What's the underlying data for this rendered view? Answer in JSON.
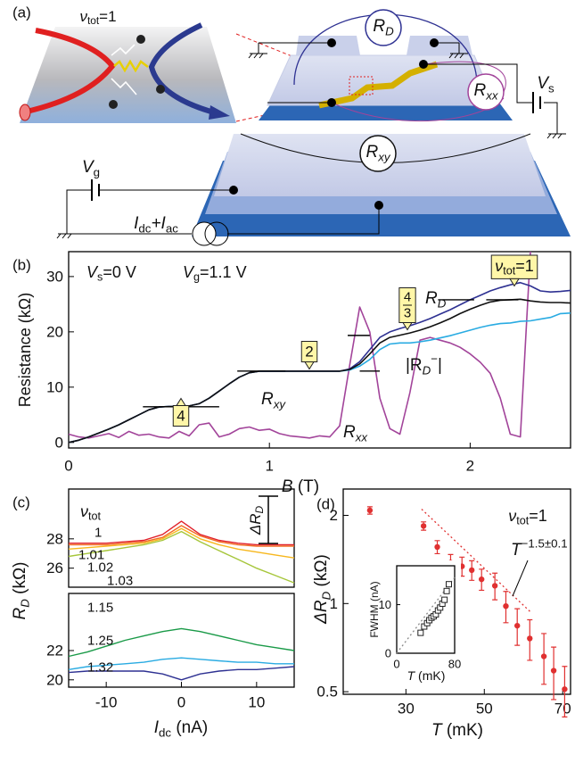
{
  "panel_labels": [
    "(a)",
    "(b)",
    "(c)",
    "(d)"
  ],
  "diagram": {
    "nu_label": [
      "ν",
      "tot",
      "=1"
    ],
    "rd": [
      "R",
      "D"
    ],
    "rxx": [
      "R",
      "xx"
    ],
    "vs": [
      "V",
      "s"
    ],
    "rxy": [
      "R",
      "xy"
    ],
    "vg": [
      "V",
      "g"
    ],
    "source": [
      "I",
      "dc",
      "+I",
      "ac"
    ]
  },
  "chart_data": [
    {
      "type": "line",
      "x": [
        0,
        0.05,
        0.1,
        0.15,
        0.2,
        0.25,
        0.3,
        0.35,
        0.4,
        0.45,
        0.5,
        0.55,
        0.6,
        0.65,
        0.7,
        0.75,
        0.8,
        0.85,
        0.9,
        0.95,
        1.0,
        1.05,
        1.1,
        1.15,
        1.2,
        1.25,
        1.3,
        1.35,
        1.4,
        1.45,
        1.5,
        1.55,
        1.6,
        1.65,
        1.7,
        1.75,
        1.8,
        1.85,
        1.9,
        1.95,
        2.0,
        2.05,
        2.1,
        2.15,
        2.2,
        2.25,
        2.3,
        2.35,
        2.4,
        2.45,
        2.5
      ],
      "series": [
        {
          "name": [
            "R",
            "xx"
          ],
          "color": "#a2449a",
          "values": [
            1.5,
            1.0,
            0.8,
            1.2,
            1.6,
            0.9,
            2.0,
            1.3,
            1.5,
            1.0,
            0.8,
            2.0,
            1.2,
            3.2,
            3.5,
            1.0,
            1.5,
            2.5,
            2.8,
            2.2,
            2.4,
            1.6,
            1.2,
            1.0,
            0.8,
            1.2,
            1.0,
            3.0,
            14.0,
            24.5,
            20.0,
            8.0,
            2.5,
            1.5,
            9.0,
            18.5,
            19.0,
            18.5,
            18.0,
            17.2,
            16.0,
            14.5,
            12.5,
            8.0,
            1.5,
            1.0,
            34.5,
            null,
            null,
            null,
            null
          ]
        },
        {
          "name": [
            "|R",
            "D",
            "−",
            "|"
          ],
          "color": "#29abe2",
          "values": [
            0,
            0.4,
            1.0,
            1.7,
            2.4,
            3.2,
            4.1,
            5.0,
            5.9,
            6.4,
            6.5,
            6.5,
            6.6,
            7.0,
            8.0,
            9.3,
            10.6,
            11.8,
            12.6,
            12.9,
            12.9,
            12.9,
            12.9,
            12.9,
            12.9,
            12.9,
            12.9,
            12.9,
            13.1,
            13.8,
            15.0,
            16.8,
            17.8,
            18.0,
            18.0,
            18.2,
            18.5,
            18.9,
            19.3,
            19.8,
            20.3,
            20.8,
            21.2,
            21.5,
            21.6,
            21.9,
            22.0,
            22.3,
            22.6,
            23.3,
            23.4
          ]
        },
        {
          "name": [
            "R",
            "D"
          ],
          "color": "#2e3192",
          "values": [
            0,
            0.4,
            1.0,
            1.7,
            2.4,
            3.2,
            4.1,
            5.0,
            5.9,
            6.4,
            6.5,
            6.5,
            6.6,
            7.0,
            8.0,
            9.3,
            10.6,
            11.8,
            12.6,
            12.9,
            12.9,
            12.9,
            12.9,
            12.9,
            12.9,
            12.9,
            12.9,
            12.9,
            13.3,
            14.6,
            16.8,
            19.0,
            20.0,
            20.6,
            21.1,
            21.7,
            22.4,
            23.2,
            24.0,
            24.9,
            25.8,
            26.6,
            27.4,
            28.0,
            28.5,
            28.9,
            28.3,
            27.4,
            27.2,
            27.3,
            27.5
          ]
        },
        {
          "name": [
            "R",
            "xy"
          ],
          "color": "#111111",
          "values": [
            0,
            0.4,
            1.0,
            1.7,
            2.4,
            3.2,
            4.1,
            5.0,
            5.9,
            6.4,
            6.5,
            6.5,
            6.6,
            7.0,
            8.0,
            9.3,
            10.6,
            11.8,
            12.6,
            12.9,
            12.9,
            12.9,
            12.9,
            12.9,
            12.9,
            12.9,
            12.9,
            12.9,
            13.2,
            14.2,
            16.0,
            18.0,
            19.0,
            19.4,
            19.8,
            20.3,
            20.9,
            21.6,
            22.4,
            23.3,
            24.1,
            24.8,
            25.4,
            25.7,
            25.8,
            25.9,
            25.6,
            25.4,
            25.3,
            25.3,
            25.2
          ]
        }
      ],
      "xlim": [
        0,
        2.5
      ],
      "ylim": [
        -1,
        34.5
      ],
      "xticks": [
        0,
        1,
        2
      ],
      "yticks": [
        0,
        10,
        20,
        30
      ],
      "x_label": [
        "B",
        " (T)"
      ],
      "y_label": "Resistance (kΩ)",
      "annotations": [
        [
          "V",
          "s",
          "=0 V"
        ],
        [
          "V",
          "g",
          "=1.1 V"
        ]
      ],
      "plateau_labels": [
        "4",
        "2",
        [
          "4",
          "3"
        ],
        [
          "ν",
          "tot",
          "=1"
        ]
      ],
      "hlines": [
        {
          "x": [
            0.37,
            0.75
          ],
          "y": 6.45
        },
        {
          "x": [
            0.84,
            1.08
          ],
          "y": 12.9
        },
        {
          "x": [
            1.45,
            1.55
          ],
          "y": 12.9
        },
        {
          "x": [
            1.39,
            1.5
          ],
          "y": 19.35
        },
        {
          "x": [
            1.84,
            2.02
          ],
          "y": 25.8
        },
        {
          "x": [
            2.08,
            2.24
          ],
          "y": 25.8
        }
      ]
    },
    {
      "type": "line",
      "x": [
        -15,
        -12.5,
        -10,
        -7.5,
        -5,
        -2.5,
        0,
        2.5,
        5,
        7.5,
        10,
        12.5,
        15
      ],
      "series": [
        {
          "name": "1.03",
          "color": "#a6c63a",
          "values": [
            26.8,
            27.0,
            27.2,
            27.4,
            27.6,
            27.9,
            28.5,
            27.8,
            27.2,
            26.6,
            26.0,
            25.5,
            25.0
          ]
        },
        {
          "name": "1.02",
          "color": "#f7b71d",
          "values": [
            27.3,
            27.4,
            27.5,
            27.6,
            27.7,
            28.0,
            28.7,
            28.0,
            27.6,
            27.3,
            27.1,
            26.9,
            26.7
          ]
        },
        {
          "name": "1.01",
          "color": "#f26b22",
          "values": [
            27.6,
            27.6,
            27.6,
            27.7,
            27.8,
            28.1,
            28.9,
            28.2,
            27.8,
            27.6,
            27.5,
            27.5,
            27.5
          ]
        },
        {
          "name": "1",
          "color": "#e0202a",
          "values": [
            27.7,
            27.7,
            27.7,
            27.8,
            27.9,
            28.3,
            29.2,
            28.3,
            27.9,
            27.7,
            27.6,
            27.6,
            27.6
          ]
        }
      ],
      "xlim": [
        -15,
        15
      ],
      "ylim": [
        24.7,
        31.4
      ],
      "yticks": [
        26,
        28
      ],
      "header": [
        "ν",
        "tot"
      ],
      "y_label": [
        "R",
        "D",
        " (kΩ)"
      ],
      "delta_label": [
        "ΔR",
        "D"
      ]
    },
    {
      "type": "line",
      "x": [
        -15,
        -12.5,
        -10,
        -7.5,
        -5,
        -2.5,
        0,
        2.5,
        5,
        7.5,
        10,
        12.5,
        15
      ],
      "series": [
        {
          "name": "1.15",
          "color": "#1a9a48",
          "values": [
            21.6,
            21.9,
            22.3,
            22.7,
            23.0,
            23.3,
            23.5,
            23.3,
            23.0,
            22.7,
            22.4,
            22.2,
            22.0
          ]
        },
        {
          "name": "1.25",
          "color": "#29abe2",
          "values": [
            20.7,
            20.9,
            21.0,
            21.1,
            21.2,
            21.4,
            21.5,
            21.4,
            21.3,
            21.2,
            21.2,
            21.1,
            21.1
          ]
        },
        {
          "name": "1.32",
          "color": "#2e3192",
          "values": [
            20.5,
            20.6,
            20.6,
            20.6,
            20.6,
            20.4,
            20.0,
            20.4,
            20.6,
            20.7,
            20.7,
            20.8,
            20.9
          ]
        }
      ],
      "xlim": [
        -15,
        15
      ],
      "ylim": [
        19.5,
        25.9
      ],
      "xticks": [
        -10,
        0,
        10
      ],
      "yticks": [
        20,
        22
      ],
      "x_label": [
        "I",
        "dc",
        " (nA)"
      ]
    },
    {
      "type": "scatter",
      "x": [
        20.8,
        34.5,
        38.0,
        41.4,
        44.3,
        46.8,
        49.3,
        52.7,
        55.5,
        58.4,
        61.6,
        65.2,
        67.7,
        70.5
      ],
      "values": [
        2.08,
        1.84,
        1.56,
        1.38,
        1.34,
        1.3,
        1.21,
        1.15,
        0.98,
        0.84,
        0.76,
        0.66,
        0.59,
        0.51
      ],
      "errors": [
        0.06,
        0.06,
        0.08,
        0.09,
        0.1,
        0.1,
        0.1,
        0.12,
        0.12,
        0.12,
        0.12,
        0.13,
        0.12,
        0.1
      ],
      "color": "#e03030",
      "marker": "circle",
      "yscale": "log",
      "xlim": [
        14,
        72
      ],
      "ylim": [
        0.49,
        2.46
      ],
      "xticks": [
        30,
        50,
        70
      ],
      "yticks": [
        0.5,
        1,
        2
      ],
      "fit": {
        "x": [
          34,
          62
        ],
        "values": [
          2.1,
          0.93
        ]
      },
      "x_label": [
        "T",
        " (mK)"
      ],
      "y_label": [
        "ΔR",
        "D",
        " (kΩ)"
      ],
      "annotation": [
        "ν",
        "tot",
        "=1"
      ],
      "fit_label": [
        "T",
        "−1.5±0.1"
      ]
    },
    {
      "type": "scatter",
      "x": [
        33,
        38,
        42,
        45,
        48,
        51,
        54,
        57,
        60,
        63,
        66,
        69,
        72
      ],
      "values": [
        4.2,
        5.5,
        6.2,
        6.8,
        7.3,
        7.6,
        8.0,
        8.8,
        9.4,
        10.2,
        11.0,
        12.8,
        14.2
      ],
      "color": "#222222",
      "marker": "square",
      "xlim": [
        0,
        80
      ],
      "ylim": [
        0,
        18
      ],
      "xticks": [
        0,
        80
      ],
      "yticks": [
        0,
        10
      ],
      "fit": {
        "x": [
          0,
          80
        ],
        "values": [
          0,
          15.6
        ]
      },
      "x_label": [
        "T",
        " (mK)"
      ],
      "y_label": "FWHM (nA)"
    }
  ]
}
